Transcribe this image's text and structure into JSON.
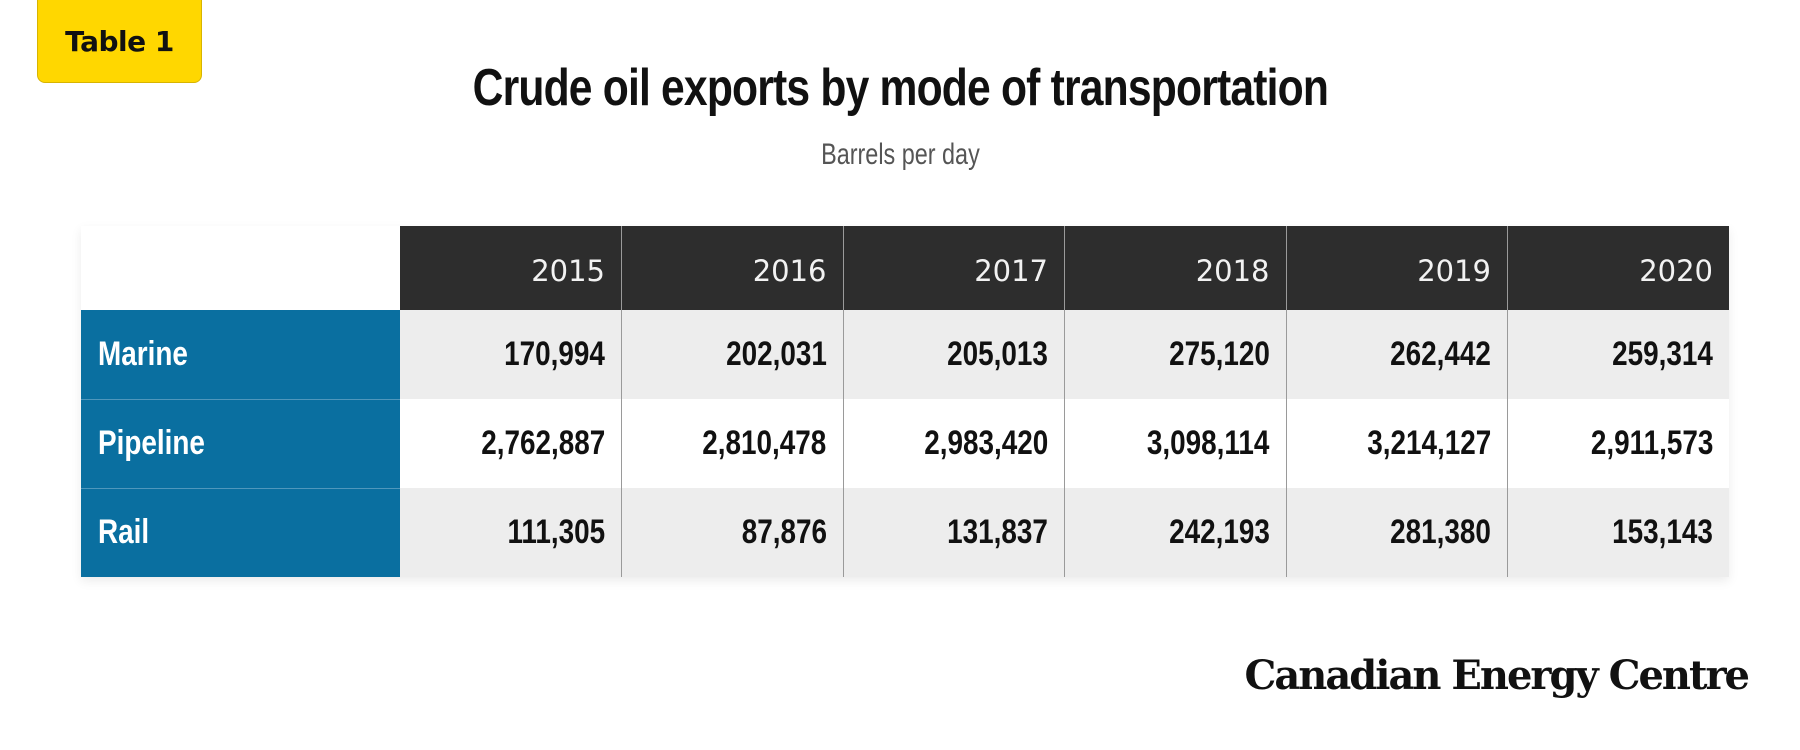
{
  "badge": "Table 1",
  "brand": "Canadian Energy Centre",
  "colors": {
    "badge": "#FFD700",
    "header": "#2D2D2D",
    "row_label": "#0A6FA0",
    "shade": "#EDEDED"
  },
  "chart_data": {
    "type": "table",
    "title": "Crude oil exports by mode of transportation",
    "subtitle": "Barrels per day",
    "columns": [
      "2015",
      "2016",
      "2017",
      "2018",
      "2019",
      "2020"
    ],
    "rows": [
      {
        "label": "Marine",
        "values": [
          "170,994",
          "202,031",
          "205,013",
          "275,120",
          "262,442",
          "259,314"
        ]
      },
      {
        "label": "Pipeline",
        "values": [
          "2,762,887",
          "2,810,478",
          "2,983,420",
          "3,098,114",
          "3,214,127",
          "2,911,573"
        ]
      },
      {
        "label": "Rail",
        "values": [
          "111,305",
          "87,876",
          "131,837",
          "242,193",
          "281,380",
          "153,143"
        ]
      }
    ]
  }
}
